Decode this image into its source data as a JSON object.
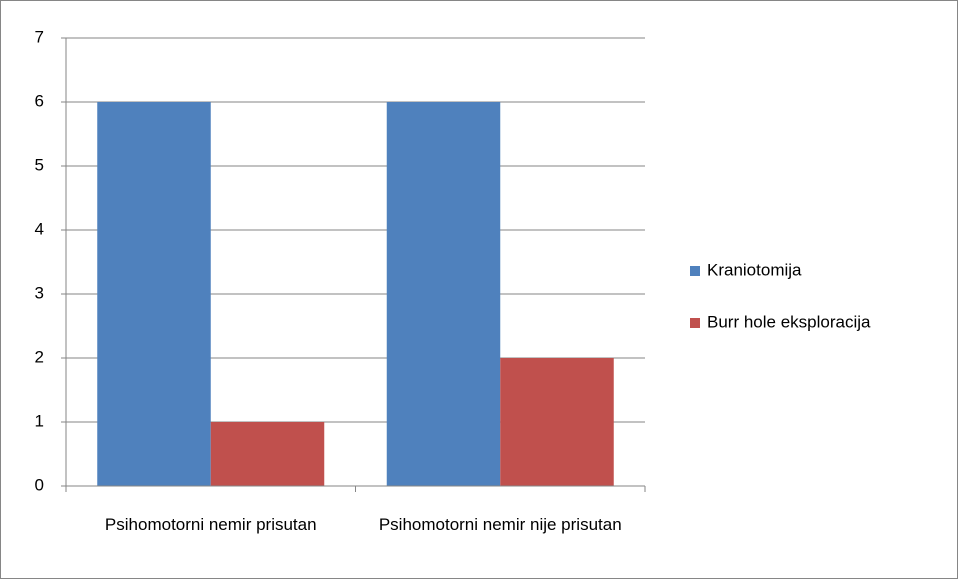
{
  "chart_data": {
    "type": "bar",
    "categories": [
      "Psihomotorni nemir prisutan",
      "Psihomotorni nemir nije prisutan"
    ],
    "series": [
      {
        "name": "Kraniotomija",
        "color": "#4f81bd",
        "values": [
          6,
          6
        ]
      },
      {
        "name": "Burr hole eksploracija",
        "color": "#c0504d",
        "values": [
          1,
          2
        ]
      }
    ],
    "ylim": [
      0,
      7
    ],
    "yticks": [
      0,
      1,
      2,
      3,
      4,
      5,
      6,
      7
    ],
    "grid": true,
    "legend": "right"
  }
}
